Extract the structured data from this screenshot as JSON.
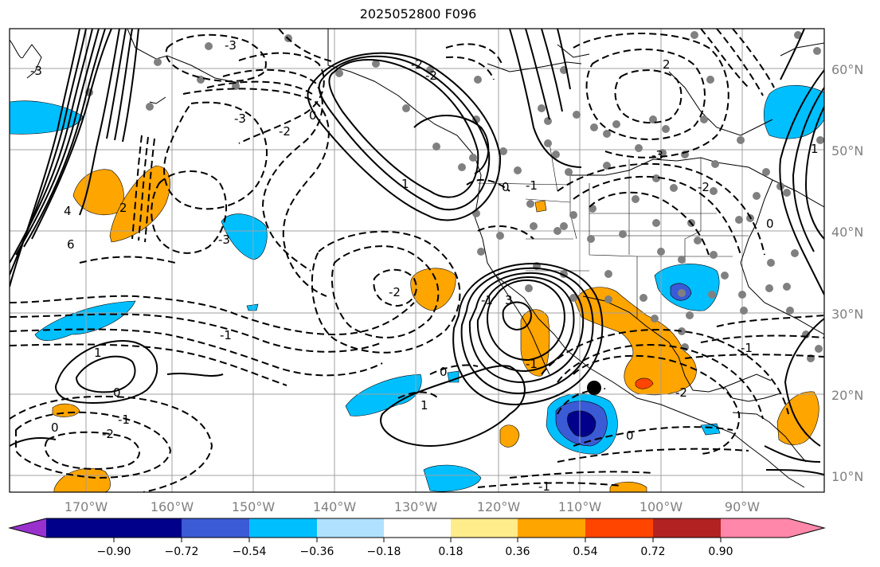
{
  "title": "2025052800 F096",
  "map": {
    "lat_labels": [
      "60°N",
      "50°N",
      "40°N",
      "30°N",
      "20°N",
      "10°N"
    ],
    "lon_labels": [
      "170°W",
      "160°W",
      "150°W",
      "140°W",
      "130°W",
      "120°W",
      "110°W",
      "100°W",
      "90°W"
    ],
    "contour_labels": [
      "-3",
      "-3",
      "-2",
      "-3",
      "-2",
      "-2",
      "0",
      "2",
      "4",
      "6",
      "-1",
      "1",
      "0",
      "0",
      "-1",
      "-2",
      "-3",
      "0",
      "1",
      "-1",
      "-2",
      "-1",
      "3",
      "-2",
      "-1",
      "0",
      "-1",
      "1",
      "-3",
      "0",
      "-2",
      "0",
      "2",
      "-1",
      "1"
    ],
    "fill_colors": {
      "light_blue": "#00bfff",
      "mid_blue": "#3b5bd6",
      "dark_blue": "#00008b",
      "orange": "#ffa500",
      "red_orange": "#ff4500"
    }
  },
  "colorbar": {
    "ticks": [
      "−0.90",
      "−0.72",
      "−0.54",
      "−0.36",
      "−0.18",
      "0.18",
      "0.36",
      "0.54",
      "0.72",
      "0.90"
    ],
    "colors": [
      "#9932cc",
      "#00008b",
      "#3b5bd6",
      "#00bfff",
      "#b0e2ff",
      "#ffffff",
      "#ffec8b",
      "#ffa500",
      "#ff4500",
      "#b22222",
      "#ff88aa"
    ]
  }
}
